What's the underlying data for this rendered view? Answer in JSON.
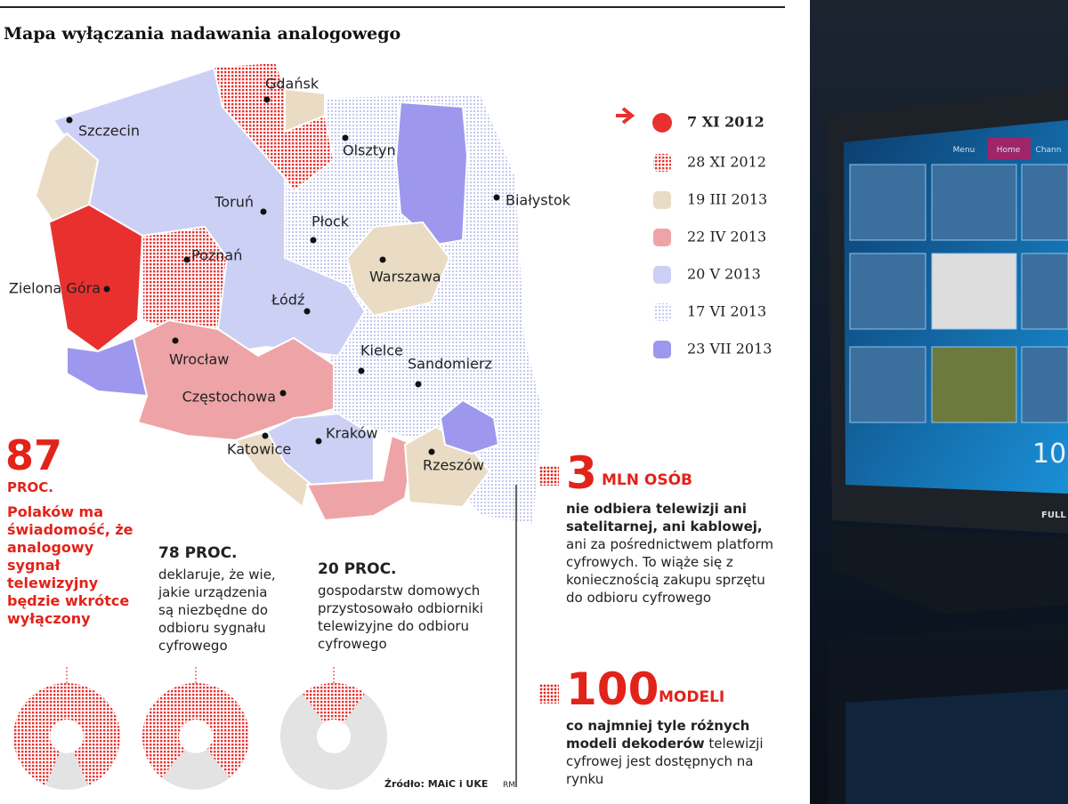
{
  "title": "Mapa wyłączania nadawania analogowego",
  "map": {
    "cities": [
      "Gdańsk",
      "Szczecin",
      "Olsztyn",
      "Toruń",
      "Białystok",
      "Płock",
      "Poznań",
      "Zielona Góra",
      "Warszawa",
      "Łódź",
      "Wrocław",
      "Kielce",
      "Sandomierz",
      "Częstochowa",
      "Kraków",
      "Katowice",
      "Rzeszów"
    ],
    "legend": [
      {
        "date": "7 XI 2012",
        "color": "#e8312f",
        "pattern": "solid"
      },
      {
        "date": "28 XI 2012",
        "color": "#e8312f",
        "pattern": "dots"
      },
      {
        "date": "19 III 2013",
        "color": "#eadcc4",
        "pattern": "solid"
      },
      {
        "date": "22 IV 2013",
        "color": "#eea4a6",
        "pattern": "solid"
      },
      {
        "date": "20 V 2013",
        "color": "#cdd0f5",
        "pattern": "solid"
      },
      {
        "date": "17 VI 2013",
        "color": "#c9cdf2",
        "pattern": "dots"
      },
      {
        "date": "23 VII 2013",
        "color": "#9d98ee",
        "pattern": "solid"
      }
    ]
  },
  "donuts": {
    "values": [
      87,
      78,
      20
    ],
    "value_labels": [
      "87",
      "78 PROC.",
      "20 PROC."
    ],
    "unit_label": "PROC.",
    "texts": [
      "Polaków ma świadomość, że analogowy sygnał telewizyjny będzie wkrótce wyłączony",
      "deklaruje, że wie, jakie urządzenia są niezbędne do odbioru sygnału cyfrowego",
      "gospodarstw domowych przystosowało odbiorniki telewizyjne do odbioru cyfrowego"
    ]
  },
  "facts": [
    {
      "number": 3,
      "unit": "MLN OSÓB",
      "lead": "nie odbiera telewizji ani satelitarnej, ani kablowej,",
      "text": "ani za pośrednictwem platform cyfrowych. To wiąże się z koniecznością zakupu sprzętu do odbioru cyfrowego"
    },
    {
      "number": 100,
      "unit": "MODELI",
      "lead": "co najmniej tyle różnych modeli dekoderów",
      "text": "telewizji cyfrowej jest dostępnych na rynku"
    }
  ],
  "source": "Źródło: MAiC i UKE",
  "credit": "RM",
  "tv": {
    "menu": [
      "Menu",
      "Home",
      "Chann"
    ],
    "clock": "10:",
    "brand": "FULL"
  }
}
